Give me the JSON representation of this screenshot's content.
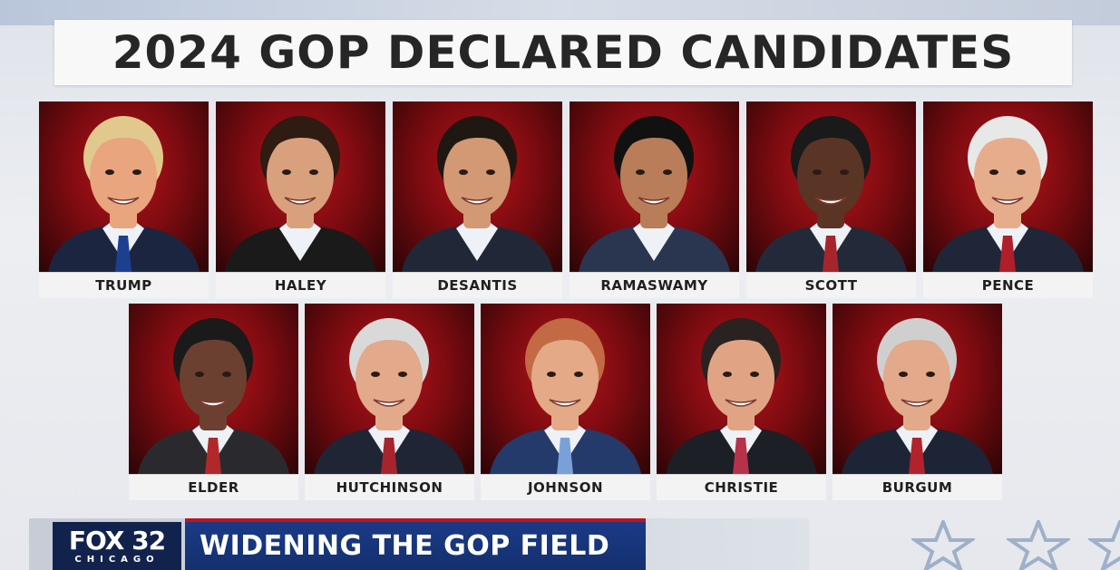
{
  "title": "2024 GOP DECLARED CANDIDATES",
  "candidates_row1": [
    {
      "name": "TRUMP",
      "hair": "#e1c98e",
      "skin": "#e9a57d",
      "suit": "#1c2540",
      "tie": "#1d3f8f"
    },
    {
      "name": "HALEY",
      "hair": "#2e1b12",
      "skin": "#d9a07d",
      "suit": "#1a1a1a",
      "tie": ""
    },
    {
      "name": "DESANTIS",
      "hair": "#1f1712",
      "skin": "#d39874",
      "suit": "#202837",
      "tie": ""
    },
    {
      "name": "RAMASWAMY",
      "hair": "#111111",
      "skin": "#b97d5a",
      "suit": "#2a3550",
      "tie": ""
    },
    {
      "name": "SCOTT",
      "hair": "#1a1a1a",
      "skin": "#5a3424",
      "suit": "#222a3a",
      "tie": "#a6252c"
    },
    {
      "name": "PENCE",
      "hair": "#e8e8e8",
      "skin": "#e6ad8c",
      "suit": "#1f2638",
      "tie": "#b01e2a"
    }
  ],
  "candidates_row2": [
    {
      "name": "ELDER",
      "hair": "#1a1a1a",
      "skin": "#6b4030",
      "suit": "#2a2a2e",
      "tie": "#b0282a"
    },
    {
      "name": "HUTCHINSON",
      "hair": "#d9d9d9",
      "skin": "#e3a98b",
      "suit": "#1f2535",
      "tie": "#a8242c"
    },
    {
      "name": "JOHNSON",
      "hair": "#c36a45",
      "skin": "#e4a987",
      "suit": "#233a6a",
      "tie": "#7aa0d8"
    },
    {
      "name": "CHRISTIE",
      "hair": "#2a2220",
      "skin": "#e0a484",
      "suit": "#1c1f26",
      "tie": "#b4334a"
    },
    {
      "name": "BURGUM",
      "hair": "#cfcfcf",
      "skin": "#e2a98a",
      "suit": "#1d2436",
      "tie": "#b2222c"
    }
  ],
  "logo": {
    "main": "FOX 32",
    "sub": "CHICAGO"
  },
  "headline": "WIDENING THE GOP FIELD",
  "colors": {
    "accent_red": "#c1121f",
    "brand_navy": "#11234d",
    "headline_blue": "#1b3a86"
  }
}
